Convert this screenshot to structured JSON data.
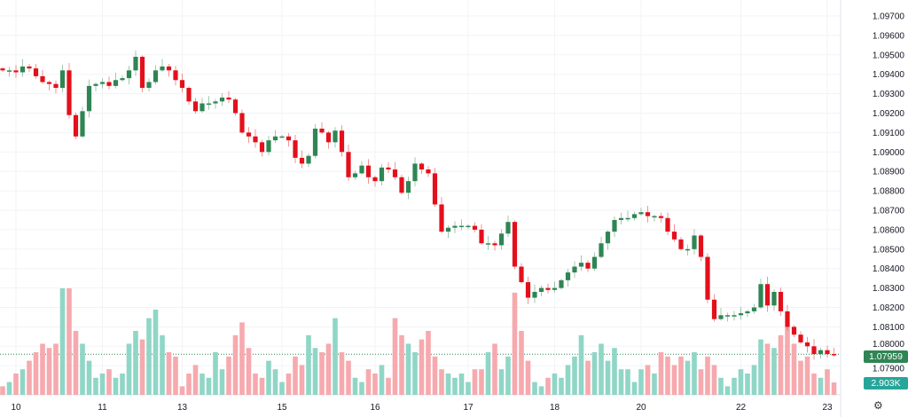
{
  "chart_data": {
    "type": "candlestick",
    "symbol_hint": "EUR pair",
    "x_tick_labels": [
      "10",
      "11",
      "13",
      "15",
      "16",
      "17",
      "18",
      "20",
      "22",
      "23"
    ],
    "x_tick_candle_index": [
      2,
      15,
      27,
      42,
      56,
      70,
      83,
      96,
      111,
      124
    ],
    "y_tick_labels": [
      "1.09700",
      "1.09600",
      "1.09500",
      "1.09400",
      "1.09300",
      "1.09200",
      "1.09100",
      "1.09000",
      "1.08900",
      "1.08800",
      "1.08700",
      "1.08600",
      "1.08500",
      "1.08400",
      "1.08300",
      "1.08200",
      "1.08100",
      "1.08000",
      "1.07900"
    ],
    "ylim": [
      1.0785,
      1.0975
    ],
    "grid": true,
    "closes": [
      1.0942,
      1.0942,
      1.0941,
      1.0944,
      1.0943,
      1.0939,
      1.0936,
      1.0935,
      1.0933,
      1.0942,
      1.0919,
      1.0908,
      1.0921,
      1.0934,
      1.0935,
      1.0936,
      1.0934,
      1.0937,
      1.0938,
      1.0942,
      1.0949,
      1.0933,
      1.0936,
      1.0942,
      1.0944,
      1.0942,
      1.0937,
      1.0933,
      1.0926,
      1.0921,
      1.0925,
      1.0925,
      1.0926,
      1.0928,
      1.0927,
      1.092,
      1.091,
      1.0908,
      1.0905,
      1.09,
      1.0906,
      1.0908,
      1.0908,
      1.0906,
      1.0897,
      1.0894,
      1.0898,
      1.0912,
      1.091,
      1.0905,
      1.0911,
      1.09,
      1.0887,
      1.0889,
      1.0893,
      1.0887,
      1.0885,
      1.0892,
      1.0891,
      1.0887,
      1.0879,
      1.0885,
      1.0894,
      1.0891,
      1.0889,
      1.0873,
      1.0859,
      1.0861,
      1.0862,
      1.0862,
      1.0862,
      1.086,
      1.0853,
      1.0853,
      1.0852,
      1.0858,
      1.0864,
      1.0841,
      1.0833,
      1.0825,
      1.0828,
      1.083,
      1.0829,
      1.083,
      1.0834,
      1.0838,
      1.0841,
      1.0843,
      1.084,
      1.0846,
      1.0853,
      1.0859,
      1.0865,
      1.0866,
      1.0866,
      1.0868,
      1.0869,
      1.0867,
      1.0867,
      1.0866,
      1.0859,
      1.0855,
      1.085,
      1.085,
      1.0857,
      1.0846,
      1.0824,
      1.0814,
      1.0816,
      1.0816,
      1.0816,
      1.0817,
      1.0818,
      1.082,
      1.0832,
      1.0821,
      1.0828,
      1.0818,
      1.081,
      1.0806,
      1.0802,
      1.08,
      1.0796,
      1.0798,
      1.0796,
      1.07959
    ],
    "volumes_k": [
      2,
      3,
      5,
      6,
      8,
      10,
      12,
      11,
      12,
      25,
      25,
      15,
      12,
      8,
      4,
      5,
      6,
      4,
      5,
      12,
      15,
      13,
      18,
      20,
      14,
      10,
      9,
      2,
      5,
      7,
      5,
      4,
      10,
      6,
      9,
      14,
      17,
      11,
      5,
      4,
      8,
      6,
      3,
      5,
      9,
      7,
      14,
      11,
      10,
      12,
      18,
      10,
      8,
      4,
      3,
      6,
      5,
      7,
      4,
      18,
      14,
      12,
      10,
      13,
      15,
      9,
      6,
      5,
      4,
      5,
      3,
      6,
      6,
      10,
      12,
      6,
      9,
      24,
      15,
      8,
      3,
      2,
      4,
      5,
      4,
      7,
      9,
      14,
      8,
      10,
      12,
      8,
      11,
      6,
      6,
      3,
      6,
      7,
      5,
      10,
      9,
      7,
      9,
      8,
      10,
      6,
      9,
      7,
      4,
      2,
      4,
      6,
      5,
      7,
      13,
      12,
      11,
      14,
      16,
      12,
      8,
      9,
      5,
      4,
      6,
      2.903
    ],
    "last_price": "1.07959",
    "last_volume": "2.903K",
    "colors": {
      "up": "#2f8554",
      "down": "#e3101b",
      "vol_up": "#8fd6c6",
      "vol_down": "#f6a9ae",
      "price_tag": "#2f8554",
      "vol_tag": "#26a69a"
    }
  },
  "ui": {
    "settings_icon": "gear-icon"
  }
}
